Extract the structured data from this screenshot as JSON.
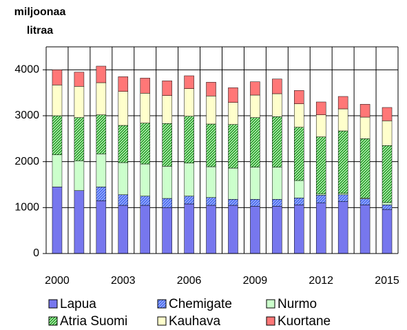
{
  "chart_data": {
    "type": "stacked_bar",
    "ylabel": [
      "miljoonaa",
      "litraa"
    ],
    "categories": [
      2000,
      null,
      null,
      2003,
      null,
      null,
      2006,
      null,
      null,
      2009,
      null,
      null,
      2012,
      null,
      null,
      2015
    ],
    "ylim": [
      0,
      4500
    ],
    "yticks": [
      0,
      1000,
      2000,
      3000,
      4000
    ],
    "grid": true,
    "legend": "bottom",
    "series": [
      {
        "name": "Lapua",
        "color": "#7777ee",
        "pattern": "solid",
        "values": [
          1450,
          1370,
          1150,
          1050,
          1050,
          1000,
          1080,
          1050,
          1050,
          1030,
          1030,
          1060,
          1100,
          1130,
          1060,
          960
        ]
      },
      {
        "name": "Chemigate",
        "color": "#4466ee",
        "pattern": "diagonal",
        "values": [
          0,
          0,
          300,
          230,
          200,
          200,
          170,
          170,
          130,
          150,
          150,
          150,
          170,
          150,
          130,
          100
        ]
      },
      {
        "name": "Nurmo",
        "color": "#ccffcc",
        "pattern": "solid",
        "values": [
          700,
          650,
          720,
          700,
          700,
          700,
          720,
          670,
          680,
          700,
          700,
          380,
          30,
          30,
          20,
          50
        ]
      },
      {
        "name": "Atria Suomi",
        "color": "#229922",
        "pattern": "diagonal",
        "values": [
          850,
          940,
          850,
          810,
          890,
          930,
          1020,
          930,
          950,
          1080,
          1100,
          1160,
          1240,
          1360,
          1290,
          1240
        ]
      },
      {
        "name": "Kauhava",
        "color": "#ffffcc",
        "pattern": "solid",
        "values": [
          670,
          680,
          700,
          740,
          650,
          610,
          600,
          610,
          480,
          490,
          500,
          510,
          480,
          480,
          470,
          540
        ]
      },
      {
        "name": "Kuortane",
        "color": "#ff7777",
        "pattern": "solid",
        "values": [
          330,
          310,
          360,
          320,
          330,
          320,
          280,
          300,
          320,
          290,
          320,
          290,
          280,
          270,
          280,
          290
        ]
      }
    ]
  }
}
